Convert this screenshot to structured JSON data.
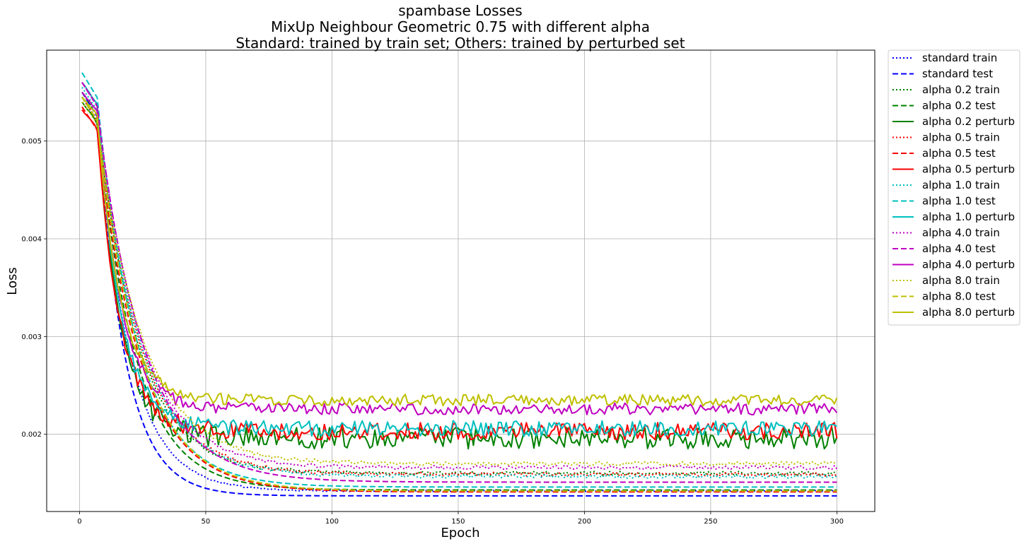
{
  "chart_data": {
    "type": "line",
    "title_lines": [
      "spambase Losses",
      "MixUp Neighbour Geometric 0.75 with different alpha",
      "Standard: trained by train set; Others: trained by perturbed set"
    ],
    "xlabel": "Epoch",
    "ylabel": "Loss",
    "xlim": [
      -13,
      315
    ],
    "ylim": [
      0.00121,
      0.00593
    ],
    "x_ticks": [
      0,
      50,
      100,
      150,
      200,
      250,
      300
    ],
    "x_tick_labels": [
      "0",
      "50",
      "100",
      "150",
      "200",
      "250",
      "300"
    ],
    "y_ticks": [
      0.002,
      0.003,
      0.004,
      0.005
    ],
    "y_tick_labels": [
      "0.002",
      "0.003",
      "0.004",
      "0.005"
    ],
    "grid": true,
    "legend_position": "outside-right",
    "epochs": [
      1,
      300
    ],
    "series": [
      {
        "name": "standard train",
        "color": "#0000ff",
        "style": "dotted",
        "start": 0.00545,
        "end": 0.00142,
        "tau": 13,
        "noise": 8e-06
      },
      {
        "name": "standard test",
        "color": "#0000ff",
        "style": "dashed",
        "start": 0.0055,
        "end": 0.00137,
        "tau": 11,
        "noise": 0
      },
      {
        "name": "alpha 0.2 train",
        "color": "#008000",
        "style": "dotted",
        "start": 0.0055,
        "end": 0.0016,
        "tau": 16,
        "noise": 2e-05
      },
      {
        "name": "alpha 0.2 test",
        "color": "#008000",
        "style": "dashed",
        "start": 0.00545,
        "end": 0.00143,
        "tau": 15,
        "noise": 0
      },
      {
        "name": "alpha 0.2 perturb",
        "color": "#008000",
        "style": "solid",
        "start": 0.0054,
        "end": 0.00196,
        "tau": 9,
        "noise": 0.00011
      },
      {
        "name": "alpha 0.5 train",
        "color": "#ff0000",
        "style": "dotted",
        "start": 0.00545,
        "end": 0.00159,
        "tau": 17,
        "noise": 2e-05
      },
      {
        "name": "alpha 0.5 test",
        "color": "#ff0000",
        "style": "dashed",
        "start": 0.00535,
        "end": 0.00141,
        "tau": 17,
        "noise": 0
      },
      {
        "name": "alpha 0.5 perturb",
        "color": "#ff0000",
        "style": "solid",
        "start": 0.00532,
        "end": 0.00203,
        "tau": 9,
        "noise": 9e-05
      },
      {
        "name": "alpha 1.0 train",
        "color": "#00bfbf",
        "style": "dotted",
        "start": 0.00555,
        "end": 0.00157,
        "tau": 17,
        "noise": 2e-05
      },
      {
        "name": "alpha 1.0 test",
        "color": "#00bfbf",
        "style": "dashed",
        "start": 0.0057,
        "end": 0.00146,
        "tau": 16,
        "noise": 0
      },
      {
        "name": "alpha 1.0 perturb",
        "color": "#00bfbf",
        "style": "solid",
        "start": 0.0056,
        "end": 0.00206,
        "tau": 9,
        "noise": 8e-05
      },
      {
        "name": "alpha 4.0 train",
        "color": "#bf00bf",
        "style": "dotted",
        "start": 0.0056,
        "end": 0.00166,
        "tau": 17,
        "noise": 2e-05
      },
      {
        "name": "alpha 4.0 test",
        "color": "#bf00bf",
        "style": "dashed",
        "start": 0.0056,
        "end": 0.00151,
        "tau": 18,
        "noise": 0
      },
      {
        "name": "alpha 4.0 perturb",
        "color": "#bf00bf",
        "style": "solid",
        "start": 0.0055,
        "end": 0.00226,
        "tau": 9,
        "noise": 6e-05
      },
      {
        "name": "alpha 8.0 train",
        "color": "#bfbf00",
        "style": "dotted",
        "start": 0.0054,
        "end": 0.0017,
        "tau": 18,
        "noise": 2e-05
      },
      {
        "name": "alpha 8.0 test",
        "color": "#bfbf00",
        "style": "dashed",
        "start": 0.00545,
        "end": 0.00142,
        "tau": 17,
        "noise": 0
      },
      {
        "name": "alpha 8.0 perturb",
        "color": "#bfbf00",
        "style": "solid",
        "start": 0.00545,
        "end": 0.00235,
        "tau": 9,
        "noise": 6e-05
      }
    ]
  }
}
